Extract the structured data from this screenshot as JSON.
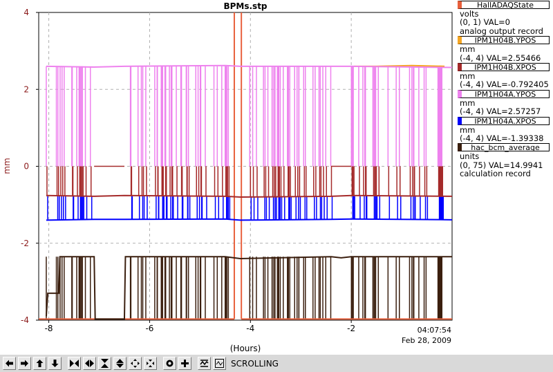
{
  "chart_data": {
    "type": "line",
    "title": "BPMs.stp",
    "xlabel": "(Hours)",
    "ylabel": "mm",
    "xlim": [
      -8.2,
      0
    ],
    "ylim": [
      -4,
      4
    ],
    "x_ticks": [
      -8,
      -6,
      -4,
      -2
    ],
    "y_ticks": [
      -4,
      -2,
      0,
      2,
      4
    ],
    "time_label": "04:07:54",
    "date_label": "Feb 28, 2009",
    "grid": true,
    "legend_position": "right",
    "series": [
      {
        "name": "HallADAQState",
        "color": "#e8603c",
        "units": "volts",
        "range": "(0, 1)",
        "val": "VAL=0",
        "note": "analog output record",
        "segments": [
          [
            [
              -8.2,
              -3.97
            ],
            [
              -4.32,
              -3.97
            ]
          ],
          [
            [
              -4.32,
              4.0
            ],
            [
              -4.32,
              -3.97
            ]
          ],
          [
            [
              -4.18,
              4.0
            ],
            [
              -4.18,
              -3.97
            ]
          ],
          [
            [
              -4.18,
              -3.97
            ],
            [
              0,
              -3.97
            ]
          ]
        ]
      },
      {
        "name": "IPM1H04B.YPOS",
        "color": "#f5a623",
        "units": "mm",
        "range": "(-4, 4)",
        "val": "VAL=2.55466",
        "note": "",
        "points": [
          [
            -1.95,
            2.6
          ],
          [
            -1.5,
            2.6
          ],
          [
            -0.8,
            2.62
          ],
          [
            -0.15,
            2.6
          ]
        ]
      },
      {
        "name": "IPM1H04B.XPOS",
        "color": "#a52a2a",
        "units": "mm",
        "range": "(-4, 4)",
        "val": "VAL=-0.792405",
        "note": "",
        "points": [
          [
            -8.05,
            -0.76
          ],
          [
            -7.1,
            -0.78
          ],
          [
            -6.5,
            -0.76
          ],
          [
            -4.5,
            -0.78
          ],
          [
            -4.2,
            -0.8
          ],
          [
            -2.4,
            -0.78
          ],
          [
            -2.0,
            -0.76
          ],
          [
            0,
            -0.78
          ]
        ]
      },
      {
        "name": "IPM1H04A.YPOS",
        "color": "#ee82ee",
        "units": "mm",
        "range": "(-4, 4)",
        "val": "VAL=2.57257",
        "note": "",
        "points": [
          [
            -8.05,
            2.6
          ],
          [
            -7.1,
            2.58
          ],
          [
            -6.5,
            2.6
          ],
          [
            -4.5,
            2.62
          ],
          [
            -4.2,
            2.6
          ],
          [
            -2.4,
            2.6
          ],
          [
            -2.0,
            2.6
          ],
          [
            0,
            2.57
          ]
        ]
      },
      {
        "name": "IPM1H04A.XPOS",
        "color": "#0000ff",
        "units": "mm",
        "range": "(-4, 4)",
        "val": "VAL=-1.39338",
        "note": "",
        "points": [
          [
            -8.05,
            -1.4
          ],
          [
            -7.1,
            -1.38
          ],
          [
            -6.5,
            -1.38
          ],
          [
            -4.5,
            -1.37
          ],
          [
            -4.2,
            -1.4
          ],
          [
            -2.4,
            -1.38
          ],
          [
            -2.0,
            -1.37
          ],
          [
            0,
            -1.39
          ]
        ]
      },
      {
        "name": "hac_bcm_average",
        "color": "#3b1f0f",
        "units": "units",
        "range": "(0, 75)",
        "val": "VAL=14.9941",
        "note": "calculation record",
        "points": [
          [
            -8.05,
            -3.9
          ],
          [
            -8.02,
            -3.3
          ],
          [
            -7.8,
            -3.3
          ],
          [
            -7.78,
            -2.35
          ],
          [
            -7.1,
            -2.35
          ],
          [
            -7.08,
            -3.97
          ],
          [
            -6.5,
            -3.97
          ],
          [
            -6.48,
            -2.35
          ],
          [
            -4.5,
            -2.35
          ],
          [
            -4.2,
            -2.4
          ],
          [
            -2.4,
            -2.35
          ],
          [
            -2.2,
            -2.38
          ],
          [
            -2.0,
            -2.35
          ],
          [
            0,
            -2.35
          ]
        ]
      }
    ]
  },
  "legend": {
    "items": [
      {
        "name": "HallADAQState",
        "units": "volts",
        "range": "(0, 1)",
        "val": "VAL=0",
        "note": "analog output record"
      },
      {
        "name": "IPM1H04B.YPOS",
        "units": "mm",
        "range": "(-4, 4)",
        "val": "VAL=2.55466"
      },
      {
        "name": "IPM1H04B.XPOS",
        "units": "mm",
        "range": "(-4, 4)",
        "val": "VAL=-0.792405"
      },
      {
        "name": "IPM1H04A.YPOS",
        "units": "mm",
        "range": "(-4, 4)",
        "val": "VAL=2.57257"
      },
      {
        "name": "IPM1H04A.XPOS",
        "units": "mm",
        "range": "(-4, 4)",
        "val": "VAL=-1.39338"
      },
      {
        "name": "hac_bcm_average",
        "units": "units",
        "range": "(0, 75)",
        "val": "VAL=14.9941",
        "note": "calculation record"
      }
    ]
  },
  "toolbar": {
    "status": "SCROLLING",
    "buttons": [
      "pan-left-icon",
      "pan-right-icon",
      "pan-up-icon",
      "pan-down-icon",
      "zoom-in-x-icon",
      "zoom-out-x-icon",
      "zoom-in-y-icon",
      "zoom-out-y-icon",
      "zoom-in-both-icon",
      "zoom-out-both-icon",
      "record-icon",
      "crosshair-icon",
      "fit-icon",
      "strip-icon"
    ]
  }
}
